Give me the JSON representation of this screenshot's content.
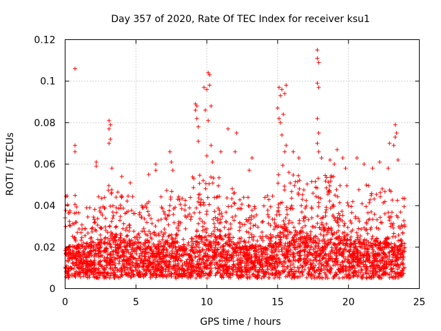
{
  "chart_data": {
    "type": "scatter",
    "title": "Day 357 of 2020, Rate Of TEC Index for receiver ksu1",
    "xlabel": "GPS time / hours",
    "ylabel": "ROTI / TECUs",
    "xlim": [
      0,
      25
    ],
    "ylim": [
      0,
      0.12
    ],
    "x_ticks": [
      0,
      5,
      10,
      15,
      20,
      25
    ],
    "x_tick_labels": [
      "0",
      "5",
      "10",
      "15",
      "20",
      "25"
    ],
    "y_ticks": [
      0,
      0.02,
      0.04,
      0.06,
      0.08,
      0.1,
      0.12
    ],
    "y_tick_labels": [
      "0",
      "0.02",
      "0.04",
      "0.06",
      "0.08",
      "0.1",
      "0.12"
    ],
    "grid": true,
    "marker": "plus",
    "point_color": "#ff0000",
    "background_density": {
      "x_range": [
        0,
        24
      ],
      "bins": [
        {
          "x0": 0.0,
          "x1": 1.0,
          "y_low": 0.005,
          "y_core": 0.02,
          "y_high": 0.045
        },
        {
          "x0": 1.0,
          "x1": 2.0,
          "y_low": 0.005,
          "y_core": 0.02,
          "y_high": 0.04
        },
        {
          "x0": 2.0,
          "x1": 3.0,
          "y_low": 0.005,
          "y_core": 0.022,
          "y_high": 0.045
        },
        {
          "x0": 3.0,
          "x1": 4.0,
          "y_low": 0.005,
          "y_core": 0.025,
          "y_high": 0.05
        },
        {
          "x0": 4.0,
          "x1": 5.0,
          "y_low": 0.005,
          "y_core": 0.022,
          "y_high": 0.045
        },
        {
          "x0": 5.0,
          "x1": 6.0,
          "y_low": 0.005,
          "y_core": 0.02,
          "y_high": 0.042
        },
        {
          "x0": 6.0,
          "x1": 7.0,
          "y_low": 0.005,
          "y_core": 0.02,
          "y_high": 0.045
        },
        {
          "x0": 7.0,
          "x1": 8.0,
          "y_low": 0.005,
          "y_core": 0.022,
          "y_high": 0.048
        },
        {
          "x0": 8.0,
          "x1": 9.0,
          "y_low": 0.005,
          "y_core": 0.02,
          "y_high": 0.045
        },
        {
          "x0": 9.0,
          "x1": 10.0,
          "y_low": 0.005,
          "y_core": 0.025,
          "y_high": 0.055
        },
        {
          "x0": 10.0,
          "x1": 11.0,
          "y_low": 0.005,
          "y_core": 0.025,
          "y_high": 0.055
        },
        {
          "x0": 11.0,
          "x1": 12.0,
          "y_low": 0.005,
          "y_core": 0.022,
          "y_high": 0.05
        },
        {
          "x0": 12.0,
          "x1": 13.0,
          "y_low": 0.005,
          "y_core": 0.02,
          "y_high": 0.045
        },
        {
          "x0": 13.0,
          "x1": 14.0,
          "y_low": 0.005,
          "y_core": 0.02,
          "y_high": 0.04
        },
        {
          "x0": 14.0,
          "x1": 15.0,
          "y_low": 0.005,
          "y_core": 0.022,
          "y_high": 0.045
        },
        {
          "x0": 15.0,
          "x1": 16.0,
          "y_low": 0.005,
          "y_core": 0.028,
          "y_high": 0.06
        },
        {
          "x0": 16.0,
          "x1": 17.0,
          "y_low": 0.005,
          "y_core": 0.025,
          "y_high": 0.055
        },
        {
          "x0": 17.0,
          "x1": 18.0,
          "y_low": 0.005,
          "y_core": 0.025,
          "y_high": 0.055
        },
        {
          "x0": 18.0,
          "x1": 19.0,
          "y_low": 0.005,
          "y_core": 0.028,
          "y_high": 0.058
        },
        {
          "x0": 19.0,
          "x1": 20.0,
          "y_low": 0.005,
          "y_core": 0.025,
          "y_high": 0.05
        },
        {
          "x0": 20.0,
          "x1": 21.0,
          "y_low": 0.005,
          "y_core": 0.022,
          "y_high": 0.048
        },
        {
          "x0": 21.0,
          "x1": 22.0,
          "y_low": 0.005,
          "y_core": 0.022,
          "y_high": 0.05
        },
        {
          "x0": 22.0,
          "x1": 23.0,
          "y_low": 0.005,
          "y_core": 0.022,
          "y_high": 0.05
        },
        {
          "x0": 23.0,
          "x1": 24.0,
          "y_low": 0.005,
          "y_core": 0.02,
          "y_high": 0.045
        }
      ]
    },
    "points": [
      {
        "x": 0.7,
        "y": 0.106
      },
      {
        "x": 0.7,
        "y": 0.069
      },
      {
        "x": 0.7,
        "y": 0.066
      },
      {
        "x": 2.2,
        "y": 0.061
      },
      {
        "x": 2.2,
        "y": 0.059
      },
      {
        "x": 3.1,
        "y": 0.081
      },
      {
        "x": 3.2,
        "y": 0.079
      },
      {
        "x": 3.1,
        "y": 0.077
      },
      {
        "x": 3.2,
        "y": 0.072
      },
      {
        "x": 3.1,
        "y": 0.07
      },
      {
        "x": 3.3,
        "y": 0.058
      },
      {
        "x": 4.0,
        "y": 0.054
      },
      {
        "x": 4.6,
        "y": 0.051
      },
      {
        "x": 5.9,
        "y": 0.055
      },
      {
        "x": 6.4,
        "y": 0.06
      },
      {
        "x": 6.4,
        "y": 0.057
      },
      {
        "x": 7.4,
        "y": 0.066
      },
      {
        "x": 7.5,
        "y": 0.061
      },
      {
        "x": 7.6,
        "y": 0.057
      },
      {
        "x": 9.2,
        "y": 0.089
      },
      {
        "x": 9.3,
        "y": 0.088
      },
      {
        "x": 9.2,
        "y": 0.086
      },
      {
        "x": 9.3,
        "y": 0.082
      },
      {
        "x": 9.4,
        "y": 0.078
      },
      {
        "x": 9.4,
        "y": 0.071
      },
      {
        "x": 9.8,
        "y": 0.097
      },
      {
        "x": 10.0,
        "y": 0.096
      },
      {
        "x": 9.9,
        "y": 0.086
      },
      {
        "x": 10.1,
        "y": 0.104
      },
      {
        "x": 10.2,
        "y": 0.103
      },
      {
        "x": 10.2,
        "y": 0.098
      },
      {
        "x": 10.3,
        "y": 0.088
      },
      {
        "x": 10.1,
        "y": 0.081
      },
      {
        "x": 10.3,
        "y": 0.069
      },
      {
        "x": 10.0,
        "y": 0.064
      },
      {
        "x": 10.4,
        "y": 0.061
      },
      {
        "x": 11.0,
        "y": 0.066
      },
      {
        "x": 11.5,
        "y": 0.077
      },
      {
        "x": 12.1,
        "y": 0.075
      },
      {
        "x": 12.0,
        "y": 0.066
      },
      {
        "x": 13.2,
        "y": 0.063
      },
      {
        "x": 13.0,
        "y": 0.057
      },
      {
        "x": 15.1,
        "y": 0.097
      },
      {
        "x": 15.3,
        "y": 0.096
      },
      {
        "x": 15.2,
        "y": 0.093
      },
      {
        "x": 15.0,
        "y": 0.087
      },
      {
        "x": 15.1,
        "y": 0.082
      },
      {
        "x": 15.2,
        "y": 0.08
      },
      {
        "x": 15.6,
        "y": 0.098
      },
      {
        "x": 15.5,
        "y": 0.094
      },
      {
        "x": 15.4,
        "y": 0.084
      },
      {
        "x": 15.3,
        "y": 0.074
      },
      {
        "x": 15.6,
        "y": 0.069
      },
      {
        "x": 15.5,
        "y": 0.066
      },
      {
        "x": 16.1,
        "y": 0.066
      },
      {
        "x": 16.5,
        "y": 0.063
      },
      {
        "x": 17.8,
        "y": 0.115
      },
      {
        "x": 17.8,
        "y": 0.111
      },
      {
        "x": 17.9,
        "y": 0.109
      },
      {
        "x": 17.8,
        "y": 0.099
      },
      {
        "x": 17.9,
        "y": 0.097
      },
      {
        "x": 17.8,
        "y": 0.082
      },
      {
        "x": 17.9,
        "y": 0.075
      },
      {
        "x": 17.8,
        "y": 0.07
      },
      {
        "x": 17.9,
        "y": 0.066
      },
      {
        "x": 18.1,
        "y": 0.063
      },
      {
        "x": 18.7,
        "y": 0.062
      },
      {
        "x": 19.2,
        "y": 0.067
      },
      {
        "x": 19.6,
        "y": 0.063
      },
      {
        "x": 19.0,
        "y": 0.06
      },
      {
        "x": 19.8,
        "y": 0.058
      },
      {
        "x": 20.6,
        "y": 0.063
      },
      {
        "x": 21.1,
        "y": 0.06
      },
      {
        "x": 21.7,
        "y": 0.058
      },
      {
        "x": 22.2,
        "y": 0.061
      },
      {
        "x": 22.8,
        "y": 0.058
      },
      {
        "x": 22.9,
        "y": 0.07
      },
      {
        "x": 23.3,
        "y": 0.079
      },
      {
        "x": 23.4,
        "y": 0.075
      },
      {
        "x": 23.3,
        "y": 0.073
      },
      {
        "x": 23.2,
        "y": 0.069
      },
      {
        "x": 23.5,
        "y": 0.062
      }
    ]
  }
}
